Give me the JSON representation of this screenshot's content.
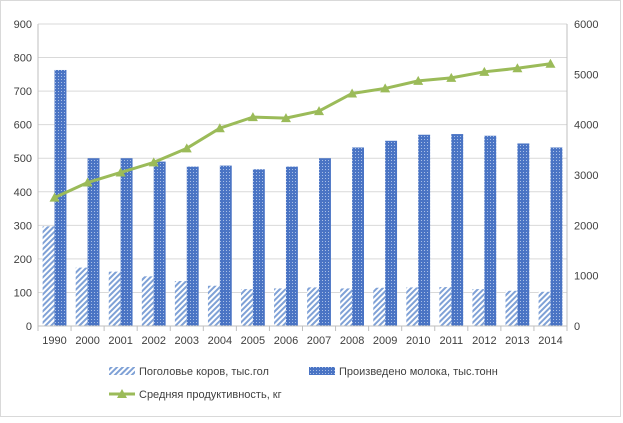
{
  "chart_data": {
    "type": "bar",
    "categories": [
      "1990",
      "2000",
      "2001",
      "2002",
      "2003",
      "2004",
      "2005",
      "2006",
      "2007",
      "2008",
      "2009",
      "2010",
      "2011",
      "2012",
      "2013",
      "2014"
    ],
    "ylim_left": [
      0,
      900
    ],
    "yticks_left": [
      0,
      100,
      200,
      300,
      400,
      500,
      600,
      700,
      800,
      900
    ],
    "ylim_right": [
      0,
      6000
    ],
    "yticks_right": [
      0,
      1000,
      2000,
      3000,
      4000,
      5000,
      6000
    ],
    "grid": true,
    "legend_position": "bottom",
    "series": [
      {
        "name": "Поголовье коров, тыс.гол",
        "type": "bar",
        "axis": "left",
        "pattern": "diagonal-hatch",
        "color": "#7fa1d6",
        "values": [
          297,
          174,
          162,
          148,
          134,
          120,
          110,
          112,
          115,
          112,
          114,
          115,
          116,
          110,
          105,
          102
        ]
      },
      {
        "name": "Произведено молока, тыс.тонн",
        "type": "bar",
        "axis": "left",
        "pattern": "dots",
        "color": "#4a74c4",
        "values": [
          763,
          500,
          500,
          490,
          475,
          478,
          467,
          475,
          500,
          532,
          552,
          570,
          572,
          567,
          544,
          532
        ]
      },
      {
        "name": "Средняя продуктивность, кг",
        "type": "line",
        "axis": "right",
        "marker": "triangle",
        "color": "#9bbb59",
        "values": [
          2550,
          2850,
          3050,
          3250,
          3530,
          3930,
          4150,
          4130,
          4270,
          4620,
          4720,
          4870,
          4930,
          5050,
          5120,
          5210
        ]
      }
    ]
  }
}
